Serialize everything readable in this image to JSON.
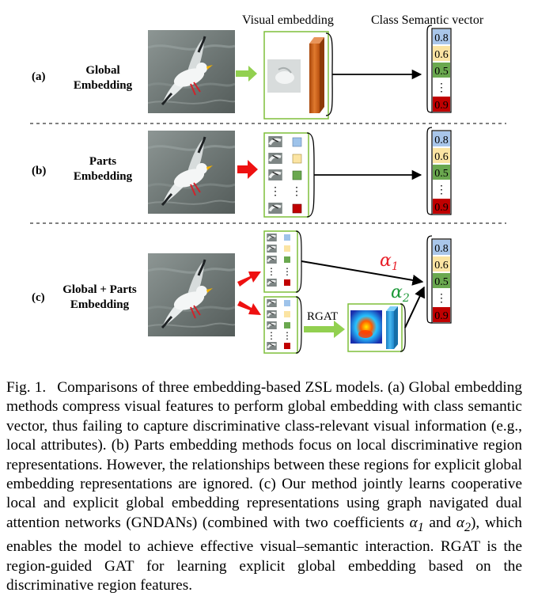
{
  "figure": {
    "header_visual": "Visual embedding",
    "header_semantic": "Class Semantic vector",
    "rows": [
      {
        "tag": "(a)",
        "title_line1": "Global",
        "title_line2": "Embedding"
      },
      {
        "tag": "(b)",
        "title_line1": "Parts",
        "title_line2": "Embedding"
      },
      {
        "tag": "(c)",
        "title_line1": "Global + Parts",
        "title_line2": "Embedding"
      }
    ],
    "semantic_values": [
      "0.8",
      "0.6",
      "0.5",
      "0.9"
    ],
    "semantic_colors": [
      "#a9c6ea",
      "#fbe4a3",
      "#6aa84f",
      "#c00000"
    ],
    "ellipsis": "⋮",
    "rgat_label": "RGAT",
    "alpha1": "α",
    "alpha1_sub": "1",
    "alpha2": "α",
    "alpha2_sub": "2",
    "alpha1_color": "#e8202a",
    "alpha2_color": "#1e9a3a",
    "arrow_green": "#92d050",
    "arrow_red": "#ee1111",
    "bar_orange": "#c55a11",
    "bar_blue": "#2fa4e7"
  },
  "caption": {
    "label": "Fig. 1.",
    "text_before_a1": "Comparisons of three embedding-based ZSL models. (a) Global embedding methods compress visual features to perform global embedding with class semantic vector, thus failing to capture discriminative class-relevant visual information (e.g., local attributes). (b) Parts embedding methods focus on local discriminative region representations. However, the relationships between these regions for explicit global embedding representations are ignored. (c) Our method jointly learns cooperative local and explicit global embedding representations using graph navigated dual attention networks (GNDANs) (combined with two coefficients",
    "a1": "α",
    "a1_sub": "1",
    "and": "and",
    "a2": "α",
    "a2_sub": "2",
    "text_after": "), which enables the model to achieve effective visual–semantic interaction. RGAT is the region-guided GAT for learning explicit global embedding based on the discriminative region features."
  }
}
